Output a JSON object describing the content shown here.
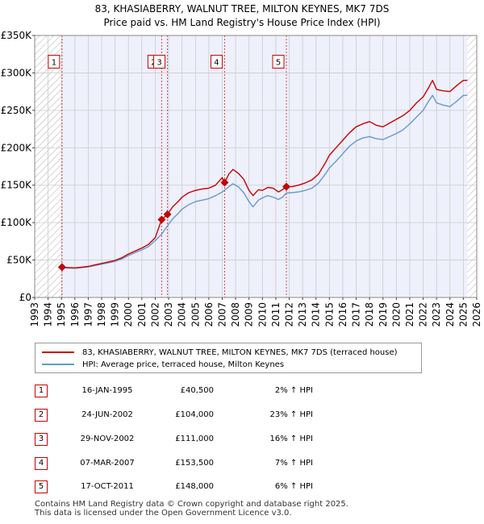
{
  "title_line1": "83, KHASIABERRY, WALNUT TREE, MILTON KEYNES, MK7 7DS",
  "title_line2": "Price paid vs. HM Land Registry's House Price Index (HPI)",
  "colors": {
    "property": "#cc0000",
    "hpi": "#6699cc",
    "shade": "#eef0fb",
    "grid": "#cccccc"
  },
  "chart_data": {
    "type": "line",
    "title": "83, KHASIABERRY, WALNUT TREE, MILTON KEYNES, MK7 7DS",
    "subtitle": "Price paid vs. HM Land Registry's House Price Index (HPI)",
    "xlim": [
      1993,
      2026
    ],
    "ylim": [
      0,
      350000
    ],
    "x_ticks": [
      "1993",
      "1994",
      "1995",
      "1996",
      "1997",
      "1998",
      "1999",
      "2000",
      "2001",
      "2002",
      "2003",
      "2004",
      "2005",
      "2006",
      "2007",
      "2008",
      "2009",
      "2010",
      "2011",
      "2012",
      "2013",
      "2014",
      "2015",
      "2016",
      "2017",
      "2018",
      "2019",
      "2020",
      "2021",
      "2022",
      "2023",
      "2024",
      "2025",
      "2026"
    ],
    "y_ticks": [
      {
        "value": 0,
        "label": "£0"
      },
      {
        "value": 50000,
        "label": "£50K"
      },
      {
        "value": 100000,
        "label": "£100K"
      },
      {
        "value": 150000,
        "label": "£150K"
      },
      {
        "value": 200000,
        "label": "£200K"
      },
      {
        "value": 250000,
        "label": "£250K"
      },
      {
        "value": 300000,
        "label": "£300K"
      },
      {
        "value": 350000,
        "label": "£350K"
      }
    ],
    "grid": true,
    "hatched_ranges": [
      [
        1993,
        1995.04
      ],
      [
        2025.3,
        2026
      ]
    ],
    "shaded_range": [
      1995.04,
      2025.3
    ],
    "series": [
      {
        "name": "83, KHASIABERRY, WALNUT TREE, MILTON KEYNES, MK7 7DS (terraced house)",
        "color": "#cc0000",
        "points": [
          [
            1995.04,
            40500
          ],
          [
            1995.5,
            40000
          ],
          [
            1996,
            39500
          ],
          [
            1996.5,
            40500
          ],
          [
            1997,
            41500
          ],
          [
            1997.5,
            43500
          ],
          [
            1998,
            45500
          ],
          [
            1998.5,
            47500
          ],
          [
            1999,
            49500
          ],
          [
            1999.5,
            53000
          ],
          [
            2000,
            58000
          ],
          [
            2000.5,
            62000
          ],
          [
            2001,
            66000
          ],
          [
            2001.5,
            71000
          ],
          [
            2002,
            80000
          ],
          [
            2002.48,
            104000
          ],
          [
            2002.91,
            111000
          ],
          [
            2003.3,
            121000
          ],
          [
            2003.7,
            128000
          ],
          [
            2004,
            134000
          ],
          [
            2004.5,
            140000
          ],
          [
            2005,
            143000
          ],
          [
            2005.5,
            145000
          ],
          [
            2006,
            146000
          ],
          [
            2006.5,
            150000
          ],
          [
            2007,
            160000
          ],
          [
            2007.18,
            153500
          ],
          [
            2007.5,
            165000
          ],
          [
            2007.8,
            171000
          ],
          [
            2008.2,
            166000
          ],
          [
            2008.6,
            158000
          ],
          [
            2009,
            143000
          ],
          [
            2009.3,
            136000
          ],
          [
            2009.7,
            144000
          ],
          [
            2010,
            143000
          ],
          [
            2010.4,
            147000
          ],
          [
            2010.8,
            146000
          ],
          [
            2011.2,
            141000
          ],
          [
            2011.5,
            144000
          ],
          [
            2011.79,
            148000
          ],
          [
            2012.2,
            148000
          ],
          [
            2012.7,
            150000
          ],
          [
            2013.2,
            153000
          ],
          [
            2013.7,
            157000
          ],
          [
            2014.2,
            165000
          ],
          [
            2014.7,
            180000
          ],
          [
            2015,
            190000
          ],
          [
            2015.5,
            200000
          ],
          [
            2016,
            210000
          ],
          [
            2016.5,
            220000
          ],
          [
            2017,
            228000
          ],
          [
            2017.5,
            232000
          ],
          [
            2018,
            235000
          ],
          [
            2018.5,
            230000
          ],
          [
            2019,
            228000
          ],
          [
            2019.5,
            233000
          ],
          [
            2020,
            238000
          ],
          [
            2020.5,
            243000
          ],
          [
            2021,
            250000
          ],
          [
            2021.5,
            260000
          ],
          [
            2022,
            268000
          ],
          [
            2022.4,
            280000
          ],
          [
            2022.7,
            290000
          ],
          [
            2023,
            278000
          ],
          [
            2023.5,
            276000
          ],
          [
            2024,
            275000
          ],
          [
            2024.5,
            283000
          ],
          [
            2025,
            290000
          ],
          [
            2025.3,
            290000
          ]
        ]
      },
      {
        "name": "HPI: Average price, terraced house, Milton Keynes",
        "color": "#6699cc",
        "points": [
          [
            1995.04,
            39700
          ],
          [
            1995.5,
            39300
          ],
          [
            1996,
            39000
          ],
          [
            1996.5,
            39700
          ],
          [
            1997,
            40800
          ],
          [
            1997.5,
            42500
          ],
          [
            1998,
            44500
          ],
          [
            1998.5,
            46200
          ],
          [
            1999,
            48200
          ],
          [
            1999.5,
            51500
          ],
          [
            2000,
            56000
          ],
          [
            2000.5,
            60000
          ],
          [
            2001,
            63500
          ],
          [
            2001.5,
            68000
          ],
          [
            2002,
            76000
          ],
          [
            2002.48,
            84500
          ],
          [
            2002.91,
            95700
          ],
          [
            2003.3,
            105000
          ],
          [
            2003.7,
            112000
          ],
          [
            2004,
            118000
          ],
          [
            2004.5,
            124000
          ],
          [
            2005,
            128000
          ],
          [
            2005.5,
            130000
          ],
          [
            2006,
            132000
          ],
          [
            2006.5,
            136000
          ],
          [
            2007,
            141000
          ],
          [
            2007.18,
            143400
          ],
          [
            2007.5,
            148000
          ],
          [
            2007.8,
            152000
          ],
          [
            2008.2,
            148000
          ],
          [
            2008.6,
            140000
          ],
          [
            2009,
            128000
          ],
          [
            2009.3,
            121000
          ],
          [
            2009.7,
            130000
          ],
          [
            2010,
            133000
          ],
          [
            2010.4,
            136000
          ],
          [
            2010.8,
            134000
          ],
          [
            2011.2,
            131000
          ],
          [
            2011.5,
            134000
          ],
          [
            2011.79,
            139600
          ],
          [
            2012.2,
            140000
          ],
          [
            2012.7,
            141000
          ],
          [
            2013.2,
            143000
          ],
          [
            2013.7,
            146000
          ],
          [
            2014.2,
            153000
          ],
          [
            2014.7,
            165000
          ],
          [
            2015,
            173000
          ],
          [
            2015.5,
            182000
          ],
          [
            2016,
            192000
          ],
          [
            2016.5,
            202000
          ],
          [
            2017,
            209000
          ],
          [
            2017.5,
            213000
          ],
          [
            2018,
            215000
          ],
          [
            2018.5,
            212000
          ],
          [
            2019,
            211000
          ],
          [
            2019.5,
            215000
          ],
          [
            2020,
            219000
          ],
          [
            2020.5,
            224000
          ],
          [
            2021,
            232000
          ],
          [
            2021.5,
            241000
          ],
          [
            2022,
            250000
          ],
          [
            2022.4,
            262000
          ],
          [
            2022.7,
            270000
          ],
          [
            2023,
            260000
          ],
          [
            2023.5,
            257000
          ],
          [
            2024,
            255000
          ],
          [
            2024.5,
            262000
          ],
          [
            2025,
            270000
          ],
          [
            2025.3,
            270000
          ]
        ]
      }
    ],
    "sales": [
      {
        "n": "1",
        "x": 1995.04,
        "price": 40500
      },
      {
        "n": "2",
        "x": 2002.48,
        "price": 104000
      },
      {
        "n": "3",
        "x": 2002.91,
        "price": 111000
      },
      {
        "n": "4",
        "x": 2007.18,
        "price": 153500
      },
      {
        "n": "5",
        "x": 2011.79,
        "price": 148000
      }
    ],
    "annotation_label_value": 315000
  },
  "legend": {
    "property": "83, KHASIABERRY, WALNUT TREE, MILTON KEYNES, MK7 7DS (terraced house)",
    "hpi": "HPI: Average price, terraced house, Milton Keynes"
  },
  "transactions": [
    {
      "n": "1",
      "date": "16-JAN-1995",
      "price": "£40,500",
      "hpi": "2% ↑ HPI"
    },
    {
      "n": "2",
      "date": "24-JUN-2002",
      "price": "£104,000",
      "hpi": "23% ↑ HPI"
    },
    {
      "n": "3",
      "date": "29-NOV-2002",
      "price": "£111,000",
      "hpi": "16% ↑ HPI"
    },
    {
      "n": "4",
      "date": "07-MAR-2007",
      "price": "£153,500",
      "hpi": "7% ↑ HPI"
    },
    {
      "n": "5",
      "date": "17-OCT-2011",
      "price": "£148,000",
      "hpi": "6% ↑ HPI"
    }
  ],
  "footer": {
    "line1": "Contains HM Land Registry data © Crown copyright and database right 2025.",
    "line2": "This data is licensed under the Open Government Licence v3.0."
  }
}
